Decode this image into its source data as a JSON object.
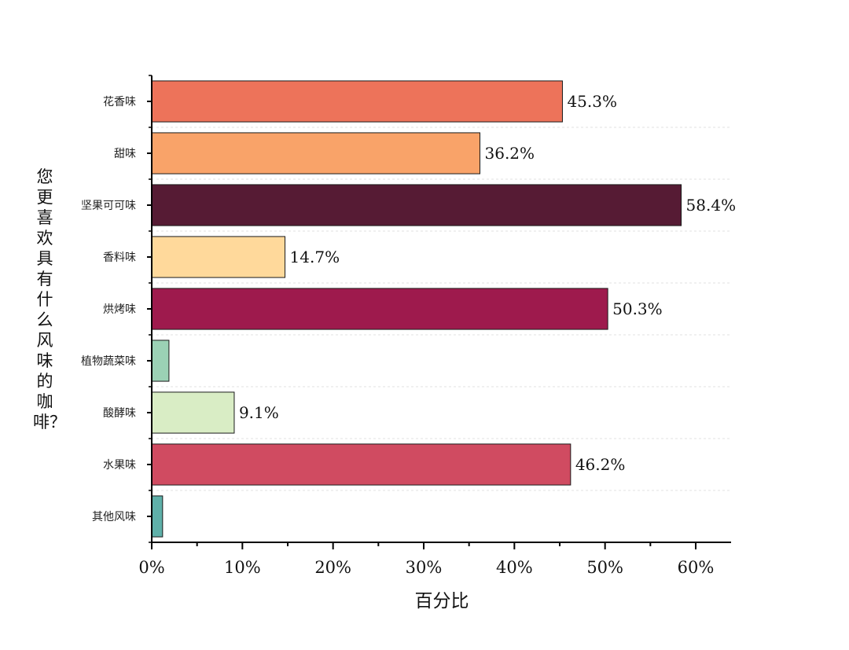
{
  "chart_data": {
    "type": "bar",
    "orientation": "horizontal",
    "title": "",
    "xlabel": "百分比",
    "ylabel": "您更喜欢具有什么风味的咖啡？",
    "xlim": [
      0,
      64
    ],
    "xticks": [
      "0%",
      "10%",
      "20%",
      "30%",
      "40%",
      "50%",
      "60%"
    ],
    "grid": "horizontal dashed",
    "categories": [
      "花香味",
      "甜味",
      "坚果可可味",
      "香料味",
      "烘烤味",
      "植物蔬菜味",
      "酸酵味",
      "水果味",
      "其他风味"
    ],
    "values": [
      45.3,
      36.2,
      58.4,
      14.7,
      50.3,
      1.9,
      9.1,
      46.2,
      1.2
    ],
    "value_labels": [
      "45.3%",
      "36.2%",
      "58.4%",
      "14.7%",
      "50.3%",
      "",
      "9.1%",
      "46.2%",
      ""
    ],
    "colors": [
      "#ED735A",
      "#F9A369",
      "#561B34",
      "#FFD99B",
      "#9E1A4D",
      "#9BD1B5",
      "#D9EDC5",
      "#D04B61",
      "#5FB0A9"
    ]
  }
}
